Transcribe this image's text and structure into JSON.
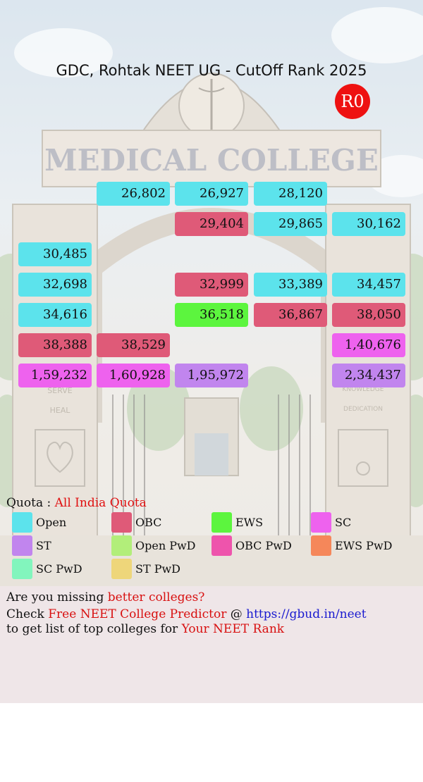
{
  "header": {
    "title": "GDC, Rohtak NEET UG - CutOff Rank 2025",
    "round": "R0"
  },
  "colors": {
    "Open": "#5ce3ec",
    "OBC": "#df5a78",
    "EWS": "#5cf53e",
    "SC": "#ee62ee",
    "ST": "#c185ee",
    "Open PwD": "#b2ee7a",
    "OBC PwD": "#ee54ac",
    "EWS PwD": "#f5875a",
    "SC PwD": "#82f5bd",
    "ST PwD": "#eed67a"
  },
  "grid": [
    {
      "row": 0,
      "col": 1,
      "value": "26,802",
      "category": "Open"
    },
    {
      "row": 0,
      "col": 2,
      "value": "26,927",
      "category": "Open"
    },
    {
      "row": 0,
      "col": 3,
      "value": "28,120",
      "category": "Open"
    },
    {
      "row": 1,
      "col": 2,
      "value": "29,404",
      "category": "OBC"
    },
    {
      "row": 1,
      "col": 3,
      "value": "29,865",
      "category": "Open"
    },
    {
      "row": 1,
      "col": 4,
      "value": "30,162",
      "category": "Open"
    },
    {
      "row": 2,
      "col": 0,
      "value": "30,485",
      "category": "Open"
    },
    {
      "row": 3,
      "col": 0,
      "value": "32,698",
      "category": "Open"
    },
    {
      "row": 3,
      "col": 2,
      "value": "32,999",
      "category": "OBC"
    },
    {
      "row": 3,
      "col": 3,
      "value": "33,389",
      "category": "Open"
    },
    {
      "row": 3,
      "col": 4,
      "value": "34,457",
      "category": "Open"
    },
    {
      "row": 4,
      "col": 0,
      "value": "34,616",
      "category": "Open"
    },
    {
      "row": 4,
      "col": 2,
      "value": "36,518",
      "category": "EWS"
    },
    {
      "row": 4,
      "col": 3,
      "value": "36,867",
      "category": "OBC"
    },
    {
      "row": 4,
      "col": 4,
      "value": "38,050",
      "category": "OBC"
    },
    {
      "row": 5,
      "col": 0,
      "value": "38,388",
      "category": "OBC"
    },
    {
      "row": 5,
      "col": 1,
      "value": "38,529",
      "category": "OBC"
    },
    {
      "row": 5,
      "col": 4,
      "value": "1,40,676",
      "category": "SC"
    },
    {
      "row": 6,
      "col": 0,
      "value": "1,59,232",
      "category": "SC"
    },
    {
      "row": 6,
      "col": 1,
      "value": "1,60,928",
      "category": "SC"
    },
    {
      "row": 6,
      "col": 2,
      "value": "1,95,972",
      "category": "ST"
    },
    {
      "row": 6,
      "col": 4,
      "value": "2,34,437",
      "category": "ST"
    }
  ],
  "legend": {
    "quota_label": "Quota :",
    "quota_value": "All India Quota",
    "items": [
      "Open",
      "OBC",
      "EWS",
      "SC",
      "ST",
      "Open PwD",
      "OBC PwD",
      "EWS PwD",
      "SC PwD",
      "ST PwD"
    ]
  },
  "promo": {
    "line1_prefix": "Are you missing ",
    "line1_highlight": "better colleges?",
    "line2_prefix": "Check ",
    "line2_highlight": "Free NEET College Predictor",
    "line2_middle": " @ ",
    "line2_link": "https://gbud.in/neet",
    "line3_prefix": "to get list of top colleges for ",
    "line3_highlight": "Your NEET Rank"
  },
  "background": {
    "sign_text": "MEDICAL COLLEGE",
    "pillar_left": [
      "SERVE",
      "HEAL"
    ],
    "pillar_right": [
      "KNOWLEDGE",
      "DEDICATION"
    ]
  }
}
